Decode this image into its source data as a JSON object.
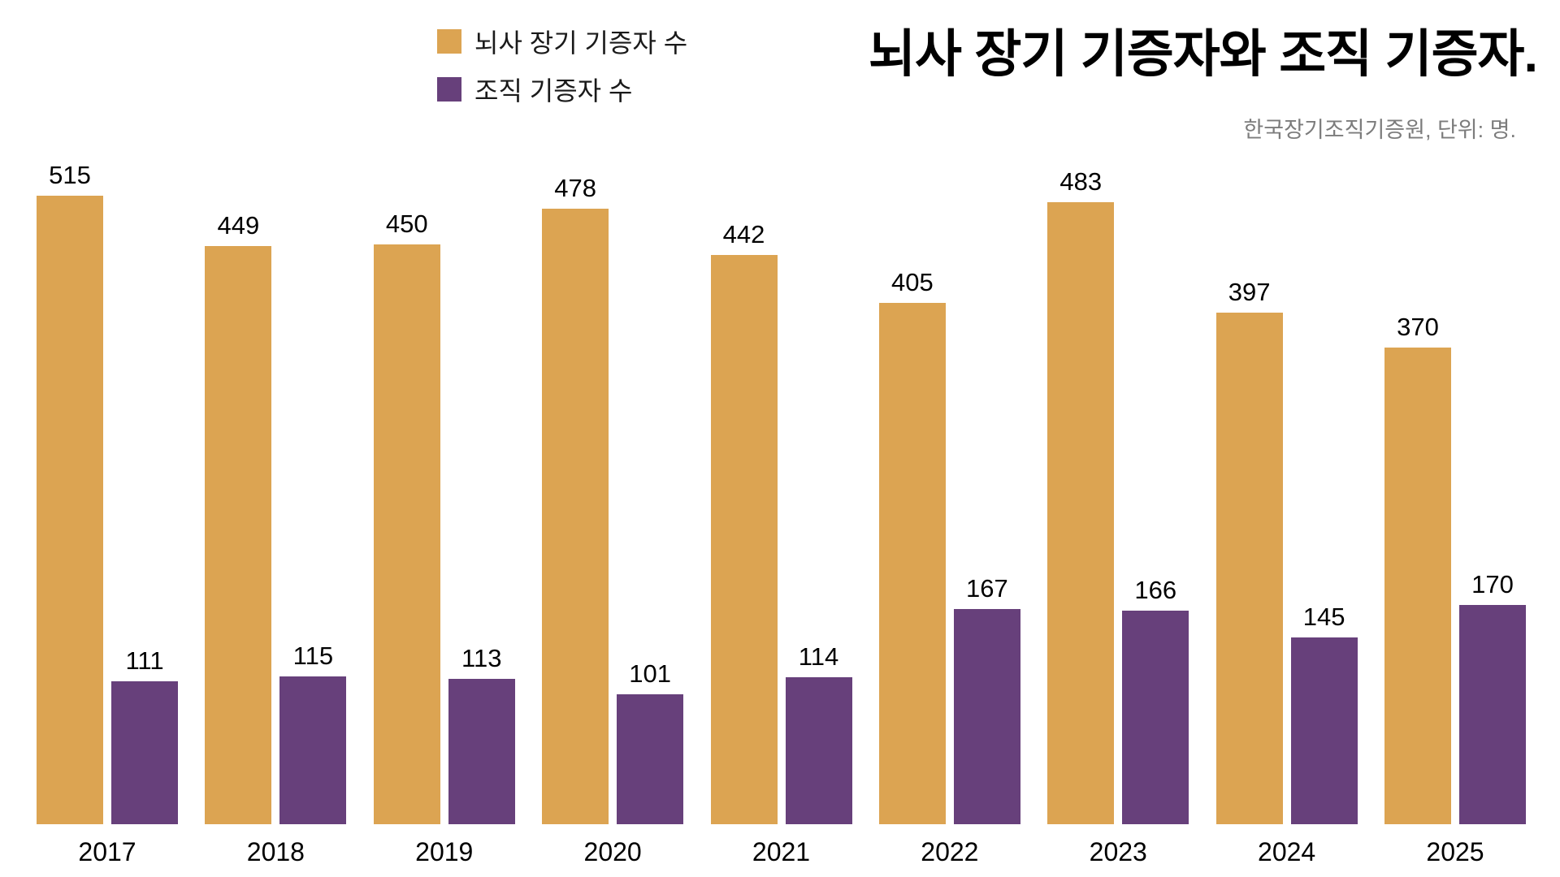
{
  "chart_data": {
    "type": "bar",
    "title": "뇌사 장기 기증자와 조직 기증자.",
    "source_note": "한국장기조직기증원, 단위: 명.",
    "categories": [
      "2017",
      "2018",
      "2019",
      "2020",
      "2021",
      "2022",
      "2023",
      "2024",
      "2025"
    ],
    "series": [
      {
        "name": "뇌사 장기 기증자 수",
        "color": "#DCA452",
        "values": [
          515,
          449,
          450,
          478,
          442,
          405,
          483,
          397,
          370
        ]
      },
      {
        "name": "조직 기증자 수",
        "color": "#67407B",
        "values": [
          111,
          115,
          113,
          101,
          114,
          167,
          166,
          145,
          170
        ]
      }
    ],
    "ylim": [
      0,
      515
    ],
    "grid": false,
    "value_labels": true,
    "legend_position": "top-center-left",
    "xlabel": "",
    "ylabel": ""
  }
}
